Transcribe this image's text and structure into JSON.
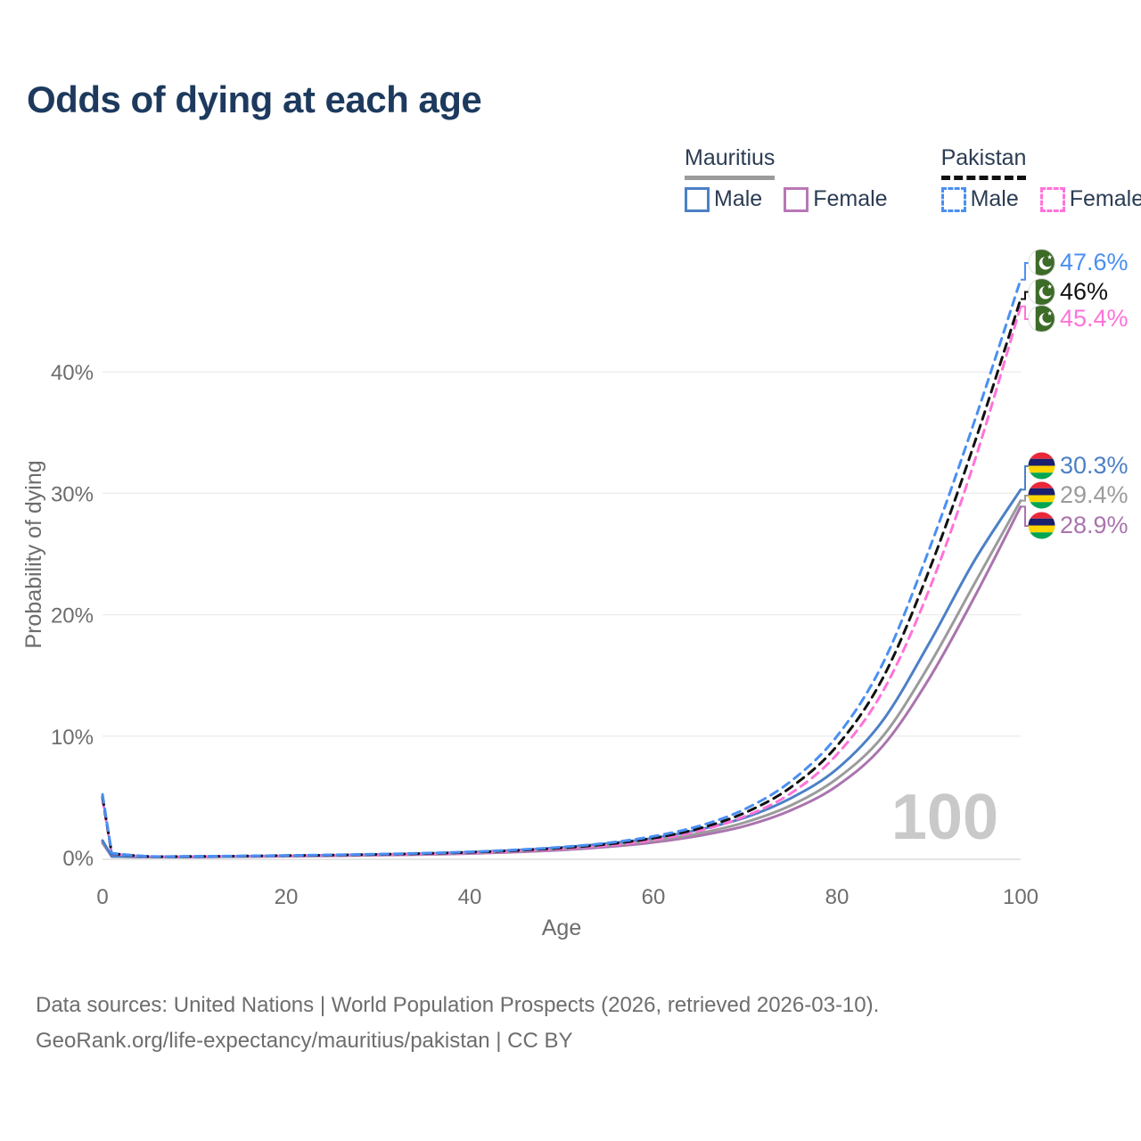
{
  "header": {
    "title": "Odds of dying at each age"
  },
  "legend": {
    "groups": [
      {
        "name": "Mauritius",
        "line_style": "solid",
        "line_color": "#9b9b9b",
        "items": [
          {
            "label": "Male",
            "color": "#4c80c6"
          },
          {
            "label": "Female",
            "color": "#b878b6"
          }
        ]
      },
      {
        "name": "Pakistan",
        "line_style": "dashed",
        "line_color": "#111111",
        "items": [
          {
            "label": "Male",
            "color": "#4a8ff2"
          },
          {
            "label": "Female",
            "color": "#ff72d9"
          }
        ]
      }
    ]
  },
  "watermark": "100",
  "footer": {
    "line1": "Data sources: United Nations | World Population Prospects (2026, retrieved 2026-03-10).",
    "line2": "GeoRank.org/life-expectancy/mauritius/pakistan | CC BY"
  },
  "chart_data": {
    "type": "line",
    "title": "Odds of dying at each age",
    "xlabel": "Age",
    "ylabel": "Probability of dying",
    "xlim": [
      0,
      100
    ],
    "ylim_percent": [
      0,
      48
    ],
    "x_ticks": [
      "0",
      "20",
      "40",
      "60",
      "80",
      "100"
    ],
    "y_ticks": [
      "0%",
      "10%",
      "20%",
      "30%",
      "40%"
    ],
    "grid": "horizontal",
    "legend_position": "top-right",
    "ages": [
      0,
      1,
      5,
      10,
      15,
      20,
      25,
      30,
      35,
      40,
      45,
      50,
      55,
      60,
      65,
      70,
      75,
      80,
      85,
      90,
      95,
      100
    ],
    "series": [
      {
        "name": "Pakistan — Male",
        "country": "Pakistan",
        "sex": "Male",
        "flag": "pakistan",
        "color": "#4a8ff2",
        "dashed": true,
        "end_label": "47.6%",
        "values_pct": [
          5.2,
          0.35,
          0.1,
          0.1,
          0.13,
          0.17,
          0.22,
          0.28,
          0.36,
          0.47,
          0.63,
          0.86,
          1.2,
          1.75,
          2.6,
          4.0,
          6.3,
          10.0,
          16.0,
          25.3,
          36.0,
          47.6
        ]
      },
      {
        "name": "Pakistan — Both sexes",
        "country": "Pakistan",
        "sex": "Both sexes",
        "flag": "pakistan",
        "color": "#111111",
        "dashed": true,
        "end_label": "46%",
        "values_pct": [
          5.0,
          0.33,
          0.09,
          0.09,
          0.12,
          0.16,
          0.2,
          0.26,
          0.33,
          0.43,
          0.58,
          0.79,
          1.1,
          1.6,
          2.4,
          3.7,
          5.8,
          9.2,
          14.8,
          23.6,
          34.2,
          46.0
        ]
      },
      {
        "name": "Pakistan — Female",
        "country": "Pakistan",
        "sex": "Female",
        "flag": "pakistan",
        "color": "#ff72d9",
        "dashed": true,
        "end_label": "45.4%",
        "values_pct": [
          4.8,
          0.31,
          0.08,
          0.08,
          0.11,
          0.14,
          0.18,
          0.23,
          0.3,
          0.39,
          0.53,
          0.72,
          1.0,
          1.45,
          2.2,
          3.4,
          5.3,
          8.5,
          13.7,
          22.0,
          32.7,
          45.4
        ]
      },
      {
        "name": "Mauritius — Male",
        "country": "Mauritius",
        "sex": "Male",
        "flag": "mauritius",
        "color": "#4c80c6",
        "dashed": false,
        "end_label": "30.3%",
        "values_pct": [
          1.4,
          0.1,
          0.05,
          0.06,
          0.1,
          0.14,
          0.19,
          0.25,
          0.33,
          0.44,
          0.6,
          0.83,
          1.15,
          1.6,
          2.3,
          3.3,
          4.9,
          7.3,
          11.3,
          17.6,
          24.5,
          30.3
        ]
      },
      {
        "name": "Mauritius — Both sexes",
        "country": "Mauritius",
        "sex": "Both sexes",
        "flag": "mauritius",
        "color": "#9b9b9b",
        "dashed": false,
        "end_label": "29.4%",
        "values_pct": [
          1.3,
          0.09,
          0.05,
          0.05,
          0.09,
          0.12,
          0.16,
          0.22,
          0.29,
          0.38,
          0.52,
          0.72,
          1.0,
          1.4,
          2.0,
          2.9,
          4.3,
          6.5,
          10.0,
          15.8,
          22.6,
          29.4
        ]
      },
      {
        "name": "Mauritius — Female",
        "country": "Mauritius",
        "sex": "Female",
        "flag": "mauritius",
        "color": "#aa74ae",
        "dashed": false,
        "end_label": "28.9%",
        "values_pct": [
          1.2,
          0.08,
          0.04,
          0.05,
          0.08,
          0.11,
          0.14,
          0.19,
          0.25,
          0.33,
          0.45,
          0.62,
          0.88,
          1.25,
          1.8,
          2.6,
          3.9,
          5.9,
          9.2,
          14.7,
          21.5,
          28.9
        ]
      }
    ]
  }
}
